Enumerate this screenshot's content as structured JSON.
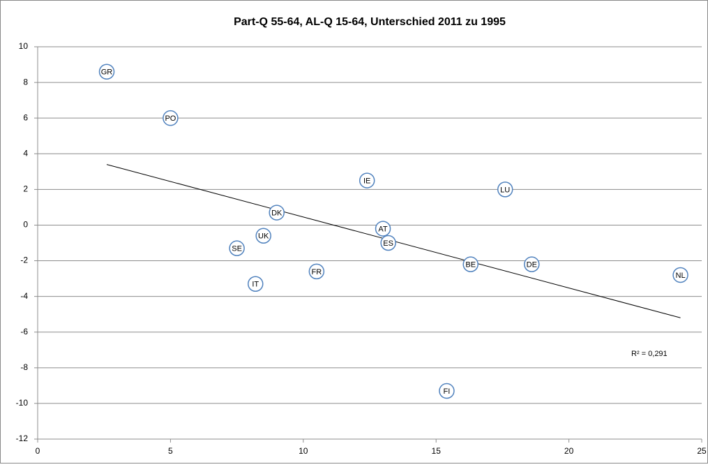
{
  "chart_data": {
    "type": "scatter",
    "title": "Part-Q 55-64, AL-Q 15-64, Unterschied 2011 zu 1995",
    "labels": [
      "GR",
      "PO",
      "IE",
      "LU",
      "DK",
      "AT",
      "UK",
      "ES",
      "SE",
      "BE",
      "DE",
      "NL",
      "FR",
      "IT",
      "FI"
    ],
    "x": [
      2.6,
      5.0,
      12.4,
      17.6,
      9.0,
      13.0,
      8.5,
      13.2,
      7.5,
      16.3,
      18.6,
      24.2,
      10.5,
      8.2,
      15.4
    ],
    "values": [
      8.6,
      6.0,
      2.5,
      2.0,
      0.7,
      -0.2,
      -0.6,
      -1.0,
      -1.3,
      -2.2,
      -2.2,
      -2.8,
      -2.6,
      -3.3,
      -9.3
    ],
    "color": "#4f81bd",
    "trendline": {
      "x": [
        2.6,
        24.2
      ],
      "y": [
        3.4,
        -5.2
      ],
      "label": "R² = 0,291"
    },
    "xlim": [
      0,
      25
    ],
    "xticks": [
      0,
      5,
      10,
      15,
      20,
      25
    ],
    "ylim": [
      -12,
      10
    ],
    "yticks": [
      -12,
      -10,
      -8,
      -6,
      -4,
      -2,
      0,
      2,
      4,
      6,
      8,
      10
    ],
    "grid": true
  }
}
